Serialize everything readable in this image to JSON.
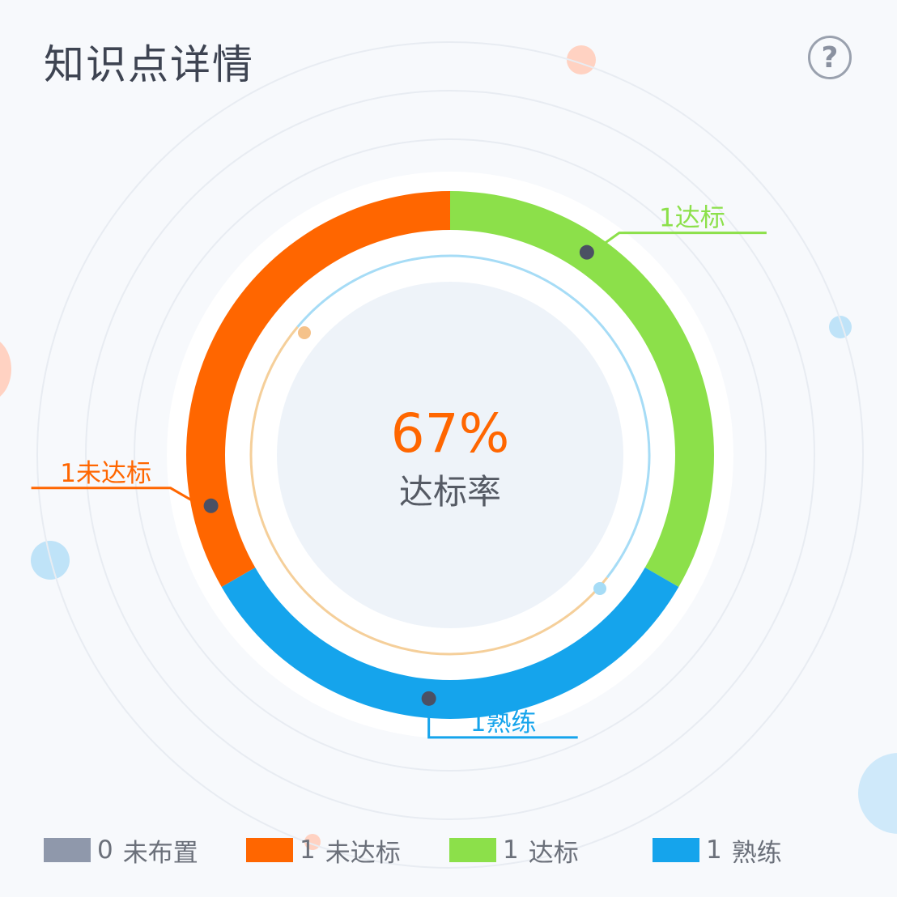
{
  "header": {
    "title": "知识点详情",
    "help_label": "?",
    "help_icon": "question-circle-icon"
  },
  "chart_data": {
    "type": "pie",
    "variant": "donut",
    "center_value": "67%",
    "center_label": "达标率",
    "slices": [
      {
        "label": "未布置",
        "value": 0,
        "color": "#8f98ab"
      },
      {
        "label": "未达标",
        "value": 1,
        "color": "#ff6600",
        "callout": "1未达标"
      },
      {
        "label": "达标",
        "value": 1,
        "color": "#8ce04a",
        "callout": "1达标"
      },
      {
        "label": "熟练",
        "value": 1,
        "color": "#15a4ec",
        "callout": "1熟练"
      }
    ],
    "legend_position": "bottom"
  },
  "legend": {
    "items": [
      {
        "count": "0",
        "label": "未布置",
        "color": "#8f98ab"
      },
      {
        "count": "1",
        "label": "未达标",
        "color": "#ff6600"
      },
      {
        "count": "1",
        "label": "达标",
        "color": "#8ce04a"
      },
      {
        "count": "1",
        "label": "熟练",
        "color": "#15a4ec"
      }
    ]
  }
}
